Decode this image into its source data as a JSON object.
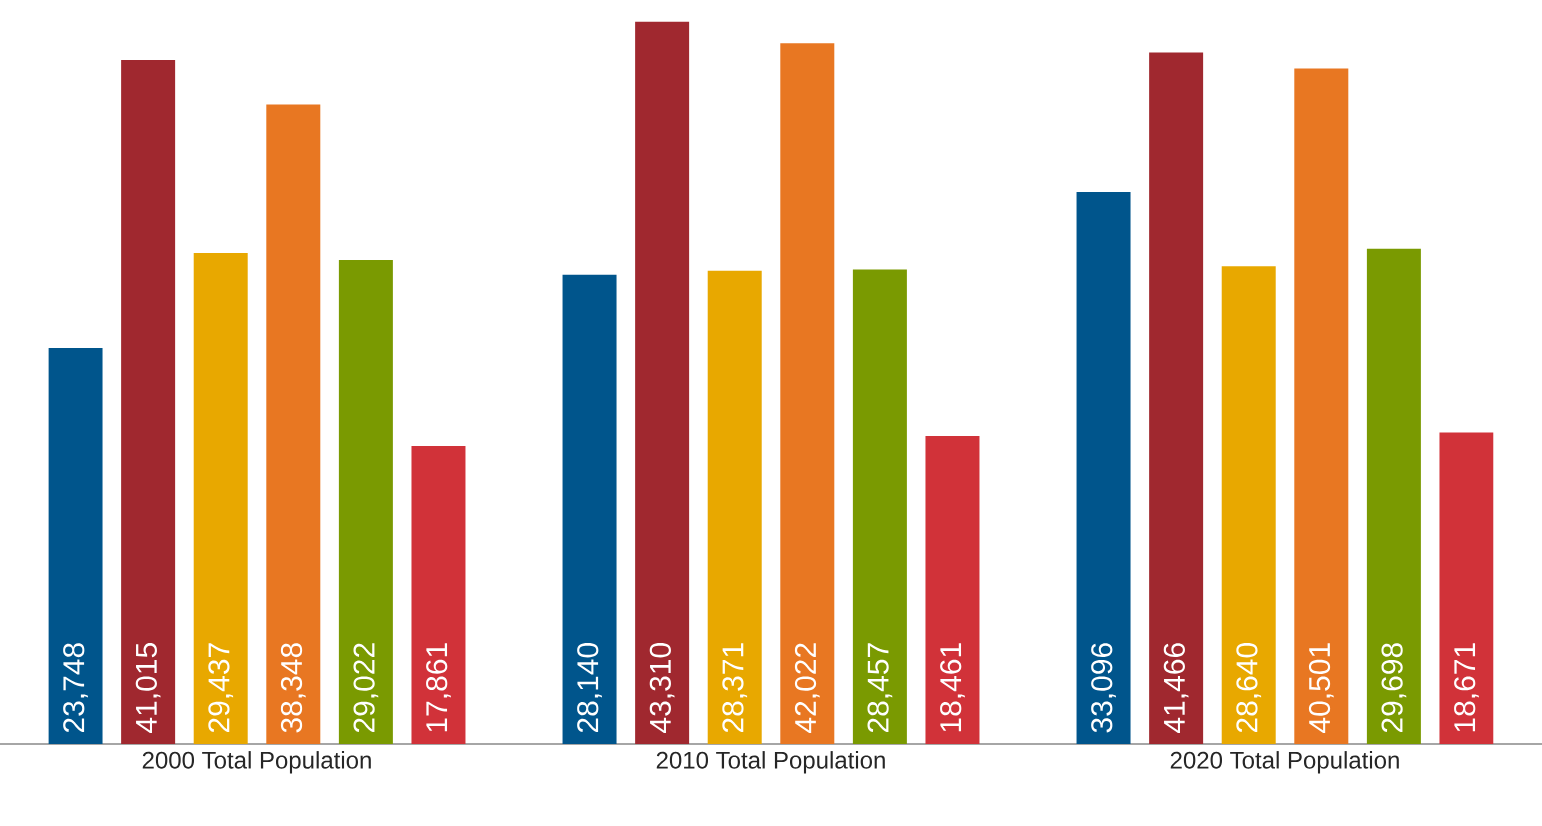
{
  "chart_data": {
    "type": "bar",
    "categories": [
      "2000 Total Population",
      "2010 Total Population",
      "2020 Total Population"
    ],
    "series": [
      {
        "color": "#00558c",
        "values": [
          23748,
          28140,
          33096
        ],
        "value_labels": [
          "23,748",
          "28,140",
          "33,096"
        ]
      },
      {
        "color": "#a0282f",
        "values": [
          41015,
          43310,
          41466
        ],
        "value_labels": [
          "41,015",
          "43,310",
          "41,466"
        ]
      },
      {
        "color": "#e8a800",
        "values": [
          29437,
          28371,
          28640
        ],
        "value_labels": [
          "29,437",
          "28,371",
          "28,640"
        ]
      },
      {
        "color": "#e87722",
        "values": [
          38348,
          42022,
          40501
        ],
        "value_labels": [
          "38,348",
          "42,022",
          "40,501"
        ]
      },
      {
        "color": "#7a9a01",
        "values": [
          29022,
          28457,
          29698
        ],
        "value_labels": [
          "29,022",
          "28,457",
          "29,698"
        ]
      },
      {
        "color": "#d13239",
        "values": [
          17861,
          18461,
          18671
        ],
        "value_labels": [
          "17,861",
          "18,461",
          "18,671"
        ]
      }
    ],
    "tick_labels": "x"
  }
}
